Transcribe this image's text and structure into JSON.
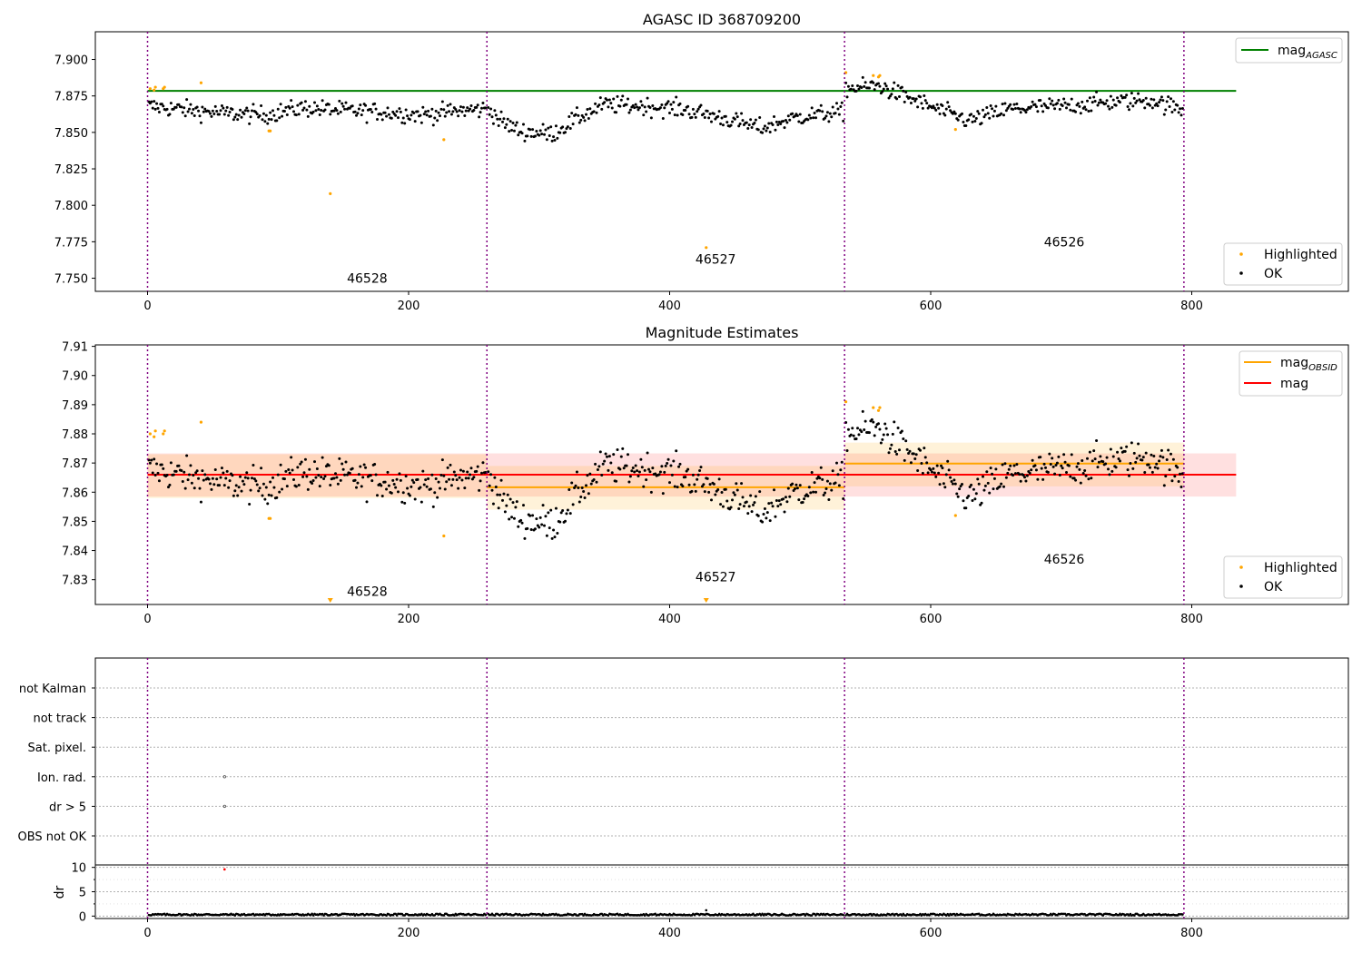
{
  "figure": {
    "vlines": [
      0,
      260,
      534,
      794
    ],
    "obsids": [
      {
        "label": "46528",
        "x": 130
      },
      {
        "label": "46527",
        "x": 397
      },
      {
        "label": "46526",
        "x": 664
      }
    ]
  },
  "chart_data": [
    {
      "type": "scatter",
      "title": "AGASC ID 368709200",
      "xlim": [
        -40,
        920
      ],
      "ylim": [
        7.741,
        7.919
      ],
      "xticks": [
        0,
        200,
        400,
        600,
        800
      ],
      "yticks": [
        7.75,
        7.775,
        7.8,
        7.825,
        7.85,
        7.875,
        7.9
      ],
      "ytick_labels": [
        "7.750",
        "7.775",
        "7.800",
        "7.825",
        "7.850",
        "7.875",
        "7.900"
      ],
      "obsid_label_y": [
        7.75,
        7.763,
        7.775
      ],
      "lines": [
        {
          "name": "mag_AGASC",
          "color": "#008000",
          "x": [
            0,
            834
          ],
          "y": [
            7.8785,
            7.8785
          ]
        }
      ],
      "segments": [
        {
          "x": [
            0,
            260
          ],
          "levels": [
            [
              0,
              7.868
            ],
            [
              25,
              7.866
            ],
            [
              60,
              7.863
            ],
            [
              90,
              7.862
            ],
            [
              120,
              7.867
            ],
            [
              150,
              7.865
            ],
            [
              180,
              7.864
            ],
            [
              210,
              7.862
            ],
            [
              240,
              7.865
            ],
            [
              260,
              7.866
            ]
          ]
        },
        {
          "x": [
            260,
            534
          ],
          "levels": [
            [
              260,
              7.868
            ],
            [
              270,
              7.858
            ],
            [
              285,
              7.851
            ],
            [
              310,
              7.849
            ],
            [
              330,
              7.86
            ],
            [
              350,
              7.869
            ],
            [
              380,
              7.868
            ],
            [
              410,
              7.866
            ],
            [
              440,
              7.86
            ],
            [
              470,
              7.853
            ],
            [
              500,
              7.861
            ],
            [
              534,
              7.864
            ]
          ]
        },
        {
          "x": [
            534,
            794
          ],
          "levels": [
            [
              534,
              7.88
            ],
            [
              560,
              7.882
            ],
            [
              585,
              7.873
            ],
            [
              610,
              7.864
            ],
            [
              630,
              7.858
            ],
            [
              660,
              7.866
            ],
            [
              700,
              7.868
            ],
            [
              740,
              7.871
            ],
            [
              770,
              7.872
            ],
            [
              794,
              7.865
            ]
          ]
        }
      ],
      "highlighted": [
        [
          2,
          7.88
        ],
        [
          5,
          7.879
        ],
        [
          6,
          7.881
        ],
        [
          12,
          7.88
        ],
        [
          13,
          7.881
        ],
        [
          41,
          7.884
        ],
        [
          93,
          7.851
        ],
        [
          94,
          7.851
        ],
        [
          140,
          7.808
        ],
        [
          227,
          7.845
        ],
        [
          428,
          7.771
        ],
        [
          535,
          7.891
        ],
        [
          556,
          7.889
        ],
        [
          560,
          7.888
        ],
        [
          561,
          7.889
        ],
        [
          619,
          7.852
        ]
      ],
      "legend": [
        {
          "label": "mag",
          "sub": "AGASC",
          "kind": "line",
          "color": "#008000",
          "position": "upper right"
        },
        {
          "label": "Highlighted",
          "kind": "marker",
          "color": "#ffa500"
        },
        {
          "label": "OK",
          "kind": "marker",
          "color": "#000000"
        }
      ]
    },
    {
      "type": "scatter",
      "title": "Magnitude Estimates",
      "xlim": [
        -40,
        920
      ],
      "ylim": [
        7.8215,
        7.9105
      ],
      "xticks": [
        0,
        200,
        400,
        600,
        800
      ],
      "yticks": [
        7.83,
        7.84,
        7.85,
        7.86,
        7.87,
        7.88,
        7.89,
        7.9,
        7.91
      ],
      "ytick_labels": [
        "7.83",
        "7.84",
        "7.85",
        "7.86",
        "7.87",
        "7.88",
        "7.89",
        "7.90",
        "7.91"
      ],
      "obsid_label_y": [
        7.826,
        7.831,
        7.837
      ],
      "bands": [
        {
          "x": [
            0,
            834
          ],
          "y": [
            7.8585,
            7.8733
          ],
          "color": "#ff0000",
          "opacity": 0.12
        },
        {
          "x": [
            0,
            260
          ],
          "y": [
            7.858,
            7.873
          ],
          "color": "#ffa500",
          "opacity": 0.15
        },
        {
          "x": [
            260,
            534
          ],
          "y": [
            7.854,
            7.869
          ],
          "color": "#ffa500",
          "opacity": 0.15
        },
        {
          "x": [
            534,
            794
          ],
          "y": [
            7.862,
            7.877
          ],
          "color": "#ffa500",
          "opacity": 0.15
        }
      ],
      "lines": [
        {
          "name": "mag_OBSID 46528",
          "color": "#ffa500",
          "x": [
            0,
            260
          ],
          "y": [
            7.866,
            7.866
          ]
        },
        {
          "name": "mag_OBSID 46527",
          "color": "#ffa500",
          "x": [
            260,
            534
          ],
          "y": [
            7.8617,
            7.8617
          ]
        },
        {
          "name": "mag_OBSID 46526",
          "color": "#ffa500",
          "x": [
            534,
            794
          ],
          "y": [
            7.8698,
            7.8698
          ]
        },
        {
          "name": "mag",
          "color": "#ff0000",
          "x": [
            0,
            834
          ],
          "y": [
            7.866,
            7.866
          ]
        }
      ],
      "highlighted": [
        [
          2,
          7.88
        ],
        [
          5,
          7.879
        ],
        [
          6,
          7.881
        ],
        [
          12,
          7.88
        ],
        [
          13,
          7.881
        ],
        [
          41,
          7.884
        ],
        [
          93,
          7.851
        ],
        [
          94,
          7.851
        ],
        [
          227,
          7.845
        ],
        [
          535,
          7.891
        ],
        [
          556,
          7.889
        ],
        [
          560,
          7.888
        ],
        [
          561,
          7.889
        ],
        [
          619,
          7.852
        ]
      ],
      "below_range": [
        [
          140,
          7.822
        ],
        [
          428,
          7.822
        ]
      ],
      "legend": [
        {
          "label": "mag",
          "sub": "OBSID",
          "kind": "line",
          "color": "#ffa500",
          "position": "upper right"
        },
        {
          "label": "mag",
          "kind": "line",
          "color": "#ff0000"
        },
        {
          "label": "Highlighted",
          "kind": "marker",
          "color": "#ffa500"
        },
        {
          "label": "OK",
          "kind": "marker",
          "color": "#000000"
        }
      ]
    },
    {
      "type": "scatter",
      "title": "",
      "xlim": [
        -40,
        920
      ],
      "categories": [
        "not Kalman",
        "not track",
        "Sat. pixel.",
        "Ion. rad.",
        "dr > 5",
        "OBS not OK"
      ],
      "flag_points": [
        {
          "category": "Ion. rad.",
          "x": 59
        },
        {
          "category": "dr > 5",
          "x": 59
        }
      ],
      "grid": true
    },
    {
      "type": "scatter",
      "title": "",
      "ylabel": "dr",
      "xlim": [
        -40,
        920
      ],
      "ylim": [
        -0.5,
        10.5
      ],
      "xticks": [
        0,
        200,
        400,
        600,
        800
      ],
      "yticks": [
        0,
        5,
        10
      ],
      "grid": true,
      "typical_dr": 0.3,
      "outliers": [
        [
          59,
          9.6,
          "#ff0000"
        ],
        [
          428,
          1.2,
          "#000000"
        ]
      ]
    }
  ]
}
